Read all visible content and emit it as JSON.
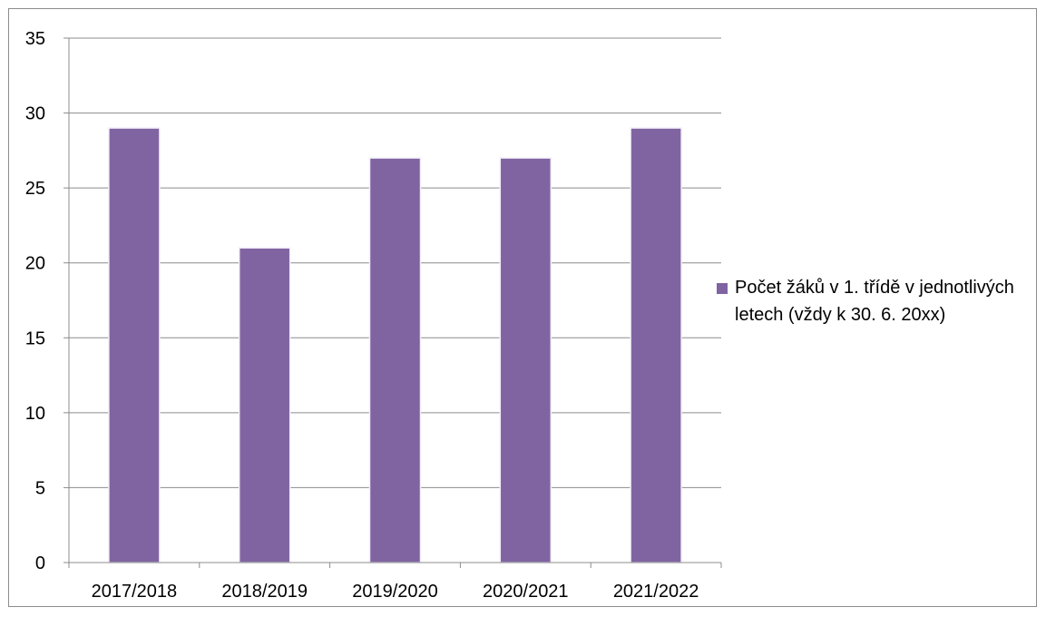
{
  "chart_data": {
    "type": "bar",
    "title": "",
    "xlabel": "",
    "ylabel": "",
    "categories": [
      "2017/2018",
      "2018/2019",
      "2019/2020",
      "2020/2021",
      "2021/2022"
    ],
    "series": [
      {
        "name": "Počet žáků v 1. třídě v jednotlivých letech (vždy k 30. 6. 20xx)",
        "values": [
          29,
          21,
          27,
          27,
          29
        ],
        "color": "#8064a2"
      }
    ],
    "ylim": [
      0,
      35
    ],
    "yticks": [
      "0",
      "5",
      "10",
      "15",
      "20",
      "25",
      "30",
      "35"
    ],
    "grid": true,
    "legend": "right"
  }
}
